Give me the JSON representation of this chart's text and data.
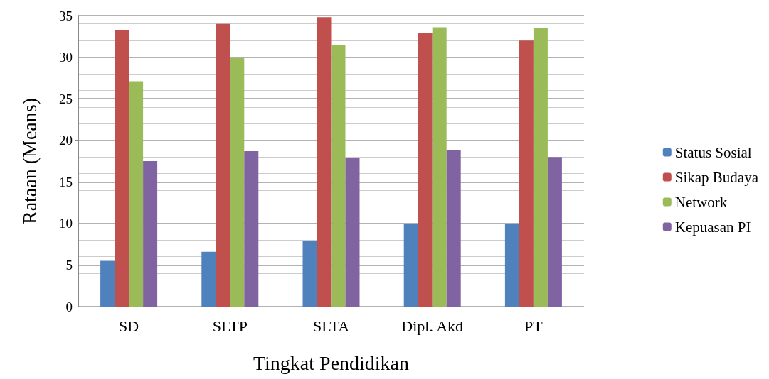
{
  "chart_data": {
    "type": "bar",
    "xlabel": "Tingkat Pendidikan",
    "ylabel": "Rataan (Means)",
    "categories": [
      "SD",
      "SLTP",
      "SLTA",
      "Dipl. Akd",
      "PT"
    ],
    "series": [
      {
        "name": "Status Sosial",
        "color": "#4f81bd",
        "values": [
          5.5,
          6.6,
          7.9,
          9.9,
          9.9
        ]
      },
      {
        "name": "Sikap Budaya",
        "color": "#c0504d",
        "values": [
          33.3,
          34.0,
          34.8,
          32.9,
          32.0
        ]
      },
      {
        "name": "Network",
        "color": "#9bbb59",
        "values": [
          27.1,
          29.9,
          31.5,
          33.6,
          33.5
        ]
      },
      {
        "name": "Kepuasan PI",
        "color": "#8064a2",
        "values": [
          17.5,
          18.7,
          17.9,
          18.8,
          18.0
        ]
      }
    ],
    "ylim": [
      0,
      35
    ],
    "yticks": [
      0,
      5,
      10,
      15,
      20,
      25,
      30,
      35
    ],
    "grid": true,
    "legend": "right"
  }
}
